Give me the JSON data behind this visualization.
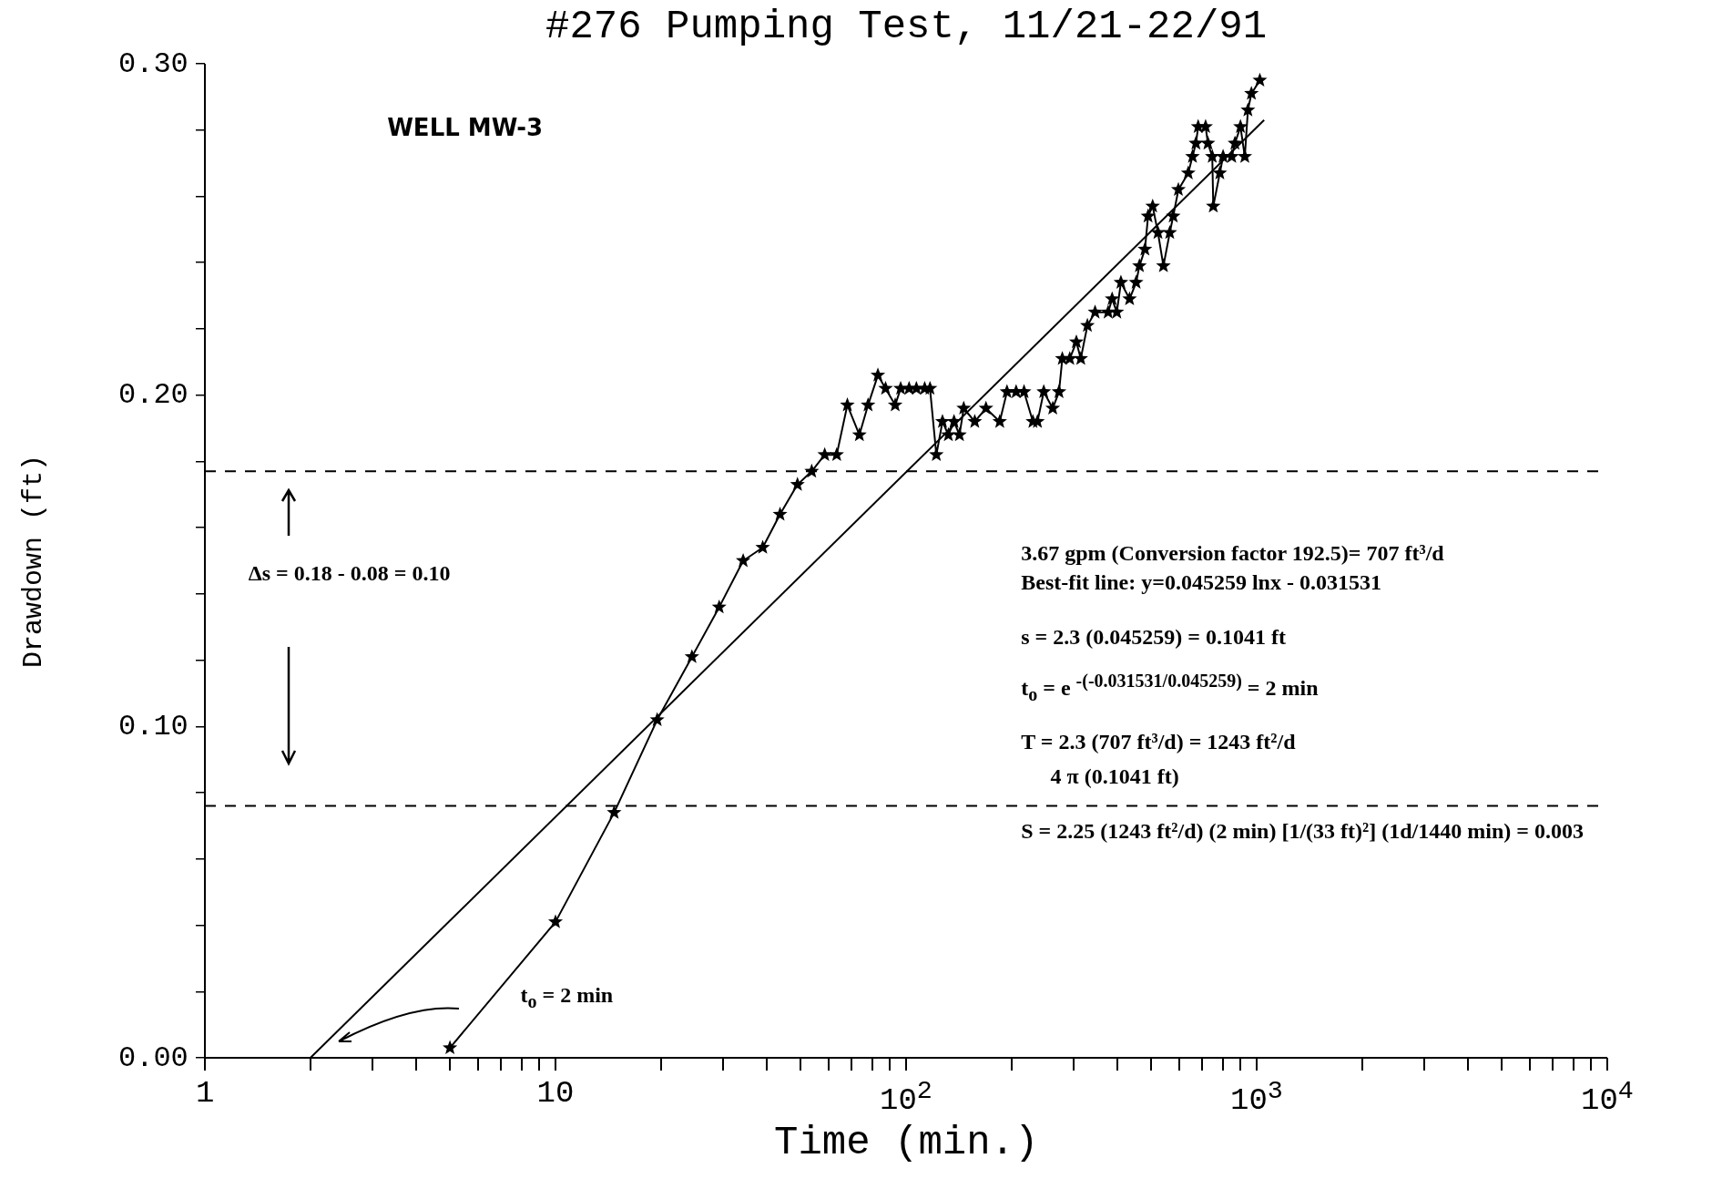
{
  "chart_data": {
    "type": "line",
    "title": "#276 Pumping Test, 11/21-22/91",
    "xlabel": "Time (min.)",
    "ylabel": "Drawdown (ft)",
    "log": "x",
    "grid": false,
    "legend": false,
    "marker": "star",
    "line_style": "solid",
    "xlim": [
      1,
      10000
    ],
    "xticks": [
      1,
      {
        "value": 2,
        "label": null
      },
      {
        "value": 3,
        "label": null
      },
      {
        "value": 4,
        "label": null
      },
      {
        "value": 5,
        "label": null
      },
      {
        "value": 6,
        "label": null
      },
      {
        "value": 7,
        "label": null
      },
      {
        "value": 8,
        "label": null
      },
      {
        "value": 9,
        "label": null
      },
      10,
      {
        "value": 20,
        "label": null
      },
      {
        "value": 30,
        "label": null
      },
      {
        "value": 40,
        "label": null
      },
      {
        "value": 50,
        "label": null
      },
      {
        "value": 60,
        "label": null
      },
      {
        "value": 70,
        "label": null
      },
      {
        "value": 80,
        "label": null
      },
      {
        "value": 90,
        "label": null
      },
      {
        "value": 100,
        "label": "10$^{2}$"
      },
      {
        "value": 200,
        "label": null
      },
      {
        "value": 300,
        "label": null
      },
      {
        "value": 400,
        "label": null
      },
      {
        "value": 500,
        "label": null
      },
      {
        "value": 600,
        "label": null
      },
      {
        "value": 700,
        "label": null
      },
      {
        "value": 800,
        "label": null
      },
      {
        "value": 900,
        "label": null
      },
      {
        "value": 1000,
        "label": "10$^{3}$"
      },
      {
        "value": 2000,
        "label": null
      },
      {
        "value": 3000,
        "label": null
      },
      {
        "value": 4000,
        "label": null
      },
      {
        "value": 5000,
        "label": null
      },
      {
        "value": 6000,
        "label": null
      },
      {
        "value": 7000,
        "label": null
      },
      {
        "value": 8000,
        "label": null
      },
      {
        "value": 9000,
        "label": null
      },
      {
        "value": 10000,
        "label": "10$^{4}$"
      }
    ],
    "ylim": [
      0,
      0.3
    ],
    "yticks": [
      {
        "value": 0,
        "label": "0.00"
      },
      {
        "value": 0.02,
        "label": null
      },
      {
        "value": 0.04,
        "label": null
      },
      {
        "value": 0.06,
        "label": null
      },
      {
        "value": 0.08,
        "label": null
      },
      {
        "value": 0.1,
        "label": "0.10"
      },
      {
        "value": 0.12,
        "label": null
      },
      {
        "value": 0.14,
        "label": null
      },
      {
        "value": 0.16,
        "label": null
      },
      {
        "value": 0.18,
        "label": null
      },
      {
        "value": 0.2,
        "label": "0.20"
      },
      {
        "value": 0.22,
        "label": null
      },
      {
        "value": 0.24,
        "label": null
      },
      {
        "value": 0.26,
        "label": null
      },
      {
        "value": 0.28,
        "label": null
      },
      {
        "value": 0.3,
        "label": "0.30"
      }
    ],
    "series": [
      {
        "color": "#000000",
        "x": [
          5.0,
          10,
          14.7,
          19.5,
          24.5,
          29.3,
          34.3,
          39,
          43.7,
          49,
          53.8,
          58.6,
          63.4,
          68,
          73.6,
          77.9,
          83.1,
          87.4,
          93.1,
          96.5,
          102,
          107,
          113,
          117,
          122,
          127,
          132,
          137,
          142,
          146,
          157,
          169,
          185,
          194,
          206,
          217,
          230,
          237,
          247,
          262,
          273,
          279,
          293,
          306,
          315,
          329,
          346,
          377,
          387,
          399,
          410,
          434,
          453,
          463,
          480,
          490,
          505,
          523,
          542,
          565,
          578,
          598,
          638,
          656,
          671,
          681,
          715,
          726,
          747,
          752,
          785,
          802,
          849,
          867,
          899,
          925,
          944,
          966,
          1021
        ],
        "values": [
          0.003,
          0.041,
          0.074,
          0.102,
          0.121,
          0.136,
          0.15,
          0.154,
          0.164,
          0.173,
          0.177,
          0.182,
          0.182,
          0.197,
          0.188,
          0.197,
          0.206,
          0.202,
          0.197,
          0.202,
          0.202,
          0.202,
          0.202,
          0.202,
          0.182,
          0.192,
          0.188,
          0.192,
          0.188,
          0.196,
          0.192,
          0.196,
          0.192,
          0.201,
          0.201,
          0.201,
          0.192,
          0.192,
          0.201,
          0.196,
          0.201,
          0.211,
          0.211,
          0.216,
          0.211,
          0.221,
          0.225,
          0.225,
          0.229,
          0.225,
          0.234,
          0.229,
          0.234,
          0.239,
          0.244,
          0.254,
          0.257,
          0.249,
          0.239,
          0.249,
          0.254,
          0.262,
          0.267,
          0.272,
          0.276,
          0.281,
          0.281,
          0.276,
          0.272,
          0.257,
          0.267,
          0.272,
          0.272,
          0.276,
          0.281,
          0.272,
          0.286,
          0.291,
          0.295
        ]
      },
      {
        "type": "line",
        "color": "#000000",
        "marker": "none",
        "x": [
          2.0,
          1050
        ],
        "values": [
          0.0,
          0.283
        ]
      }
    ],
    "ref_lines": [
      {
        "axis": "y",
        "value": 0.177,
        "color": "#000000",
        "line_style": "dashed"
      },
      {
        "axis": "y",
        "value": 0.076,
        "color": "#000000",
        "line_style": "dashed"
      }
    ],
    "annotations": [
      "WELL MW-3",
      "Δs = 0.18 - 0.08 = 0.10",
      "t$_{o}$ = 2 min",
      "3.67 gpm (Conversion factor 192.5)= 707 ft³/d",
      "Best-fit line: y=0.045259 lnx - 0.031531",
      "s = 2.3 (0.045259) = 0.1041 ft",
      "t$_{o}$ = e $^{-(-0.031531/0.045259)}$ = 2 min",
      "T = 2.3 (707 ft³/d) = 1243 ft²/d",
      "4 π (0.1041 ft)",
      "S = 2.25 (1243 ft²/d) (2 min) [1/(33 ft)²] (1d/1440 min) = 0.003"
    ]
  }
}
